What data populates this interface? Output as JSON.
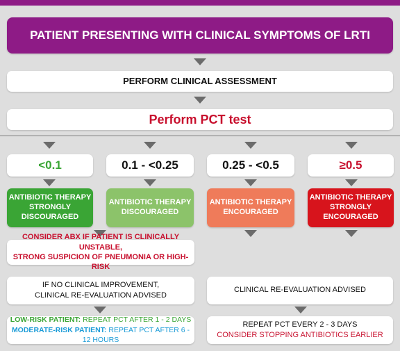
{
  "header": {
    "title": "PATIENT PRESENTING WITH CLINICAL SYMPTOMS OF LRTI"
  },
  "assessment": {
    "label": "PERFORM CLINICAL ASSESSMENT"
  },
  "pct_test": {
    "label": "Perform PCT test"
  },
  "ranges": [
    {
      "label": "<0.1",
      "color": "#3aa535"
    },
    {
      "label": "0.1 - <0.25",
      "color": "#111111"
    },
    {
      "label": "0.25 - <0.5",
      "color": "#111111"
    },
    {
      "label": "≥0.5",
      "color": "#c8102e"
    }
  ],
  "recommendations": [
    {
      "lines": [
        "ANTIBIOTIC THERAPY",
        "STRONGLY",
        "DISCOURAGED"
      ],
      "bg": "#3aa535"
    },
    {
      "lines": [
        "ANTIBIOTIC THERAPY",
        "DISCOURAGED"
      ],
      "bg": "#8cc36a"
    },
    {
      "lines": [
        "ANTIBIOTIC THERAPY",
        "ENCOURAGED"
      ],
      "bg": "#ef7b5a"
    },
    {
      "lines": [
        "ANTIBIOTIC THERAPY",
        "STRONGLY",
        "ENCOURAGED"
      ],
      "bg": "#d7141c"
    }
  ],
  "consider": {
    "line1": "CONSIDER ABX IF PATIENT IS CLINICALLY UNSTABLE,",
    "line2": "STRONG SUSPICION OF PNEUMONIA OR HIGH-RISK"
  },
  "no_improvement": {
    "line1": "IF NO CLINICAL IMPROVEMENT,",
    "line2": "CLINICAL RE-EVALUATION ADVISED"
  },
  "reevaluation": {
    "label": "CLINICAL RE-EVALUATION ADVISED"
  },
  "risk": {
    "low_label": "LOW-RISK PATIENT:",
    "low_text": " REPEAT PCT AFTER 1 - 2 DAYS",
    "moderate_label": "MODERATE-RISK PATIENT:",
    "moderate_text": " REPEAT PCT AFTER 6 - 12 HOURS"
  },
  "repeat": {
    "line1": "REPEAT PCT EVERY 2 - 3 DAYS",
    "line2": "CONSIDER STOPPING ANTIBIOTICS EARLIER"
  },
  "colors": {
    "purple": "#8e1b86",
    "red": "#c8102e",
    "green": "#3aa535",
    "blue": "#1a9bd7",
    "arrow": "#6b6b6b"
  }
}
